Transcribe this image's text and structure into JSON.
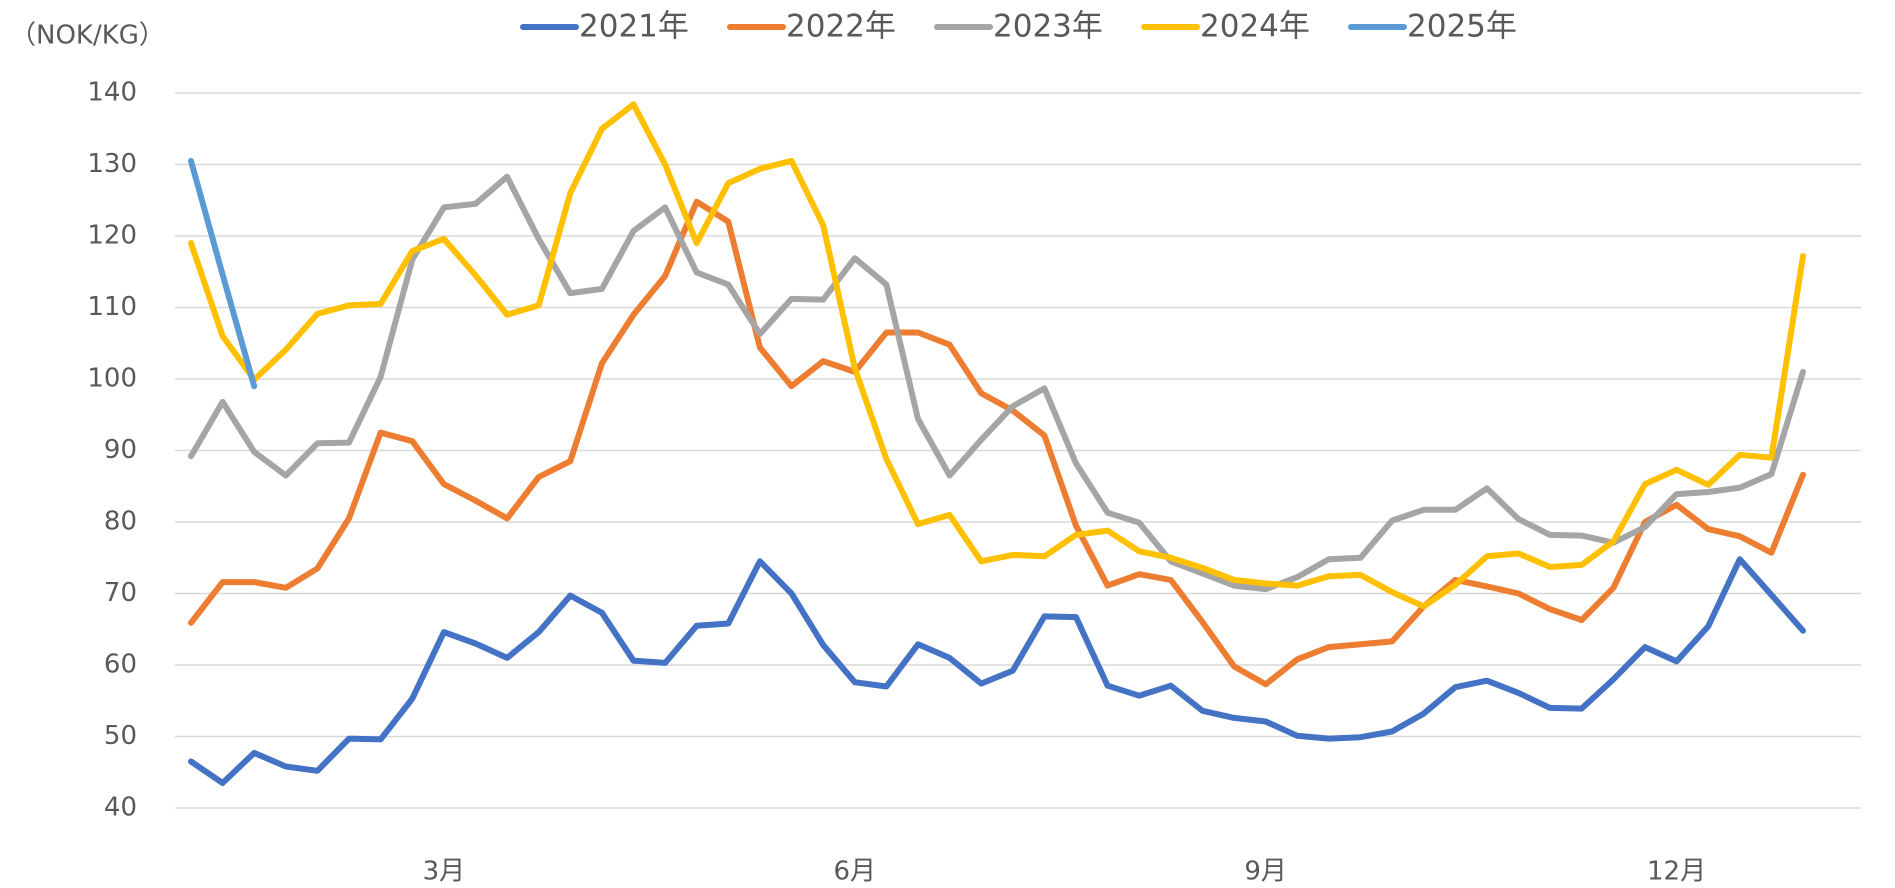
{
  "chart_data": {
    "type": "line",
    "y_label": "（NOK/KG）",
    "categories": [
      null,
      null,
      null,
      null,
      null,
      null,
      null,
      null,
      "3月",
      null,
      null,
      null,
      null,
      null,
      null,
      null,
      null,
      null,
      null,
      null,
      null,
      "6月",
      null,
      null,
      null,
      null,
      null,
      null,
      null,
      null,
      null,
      null,
      null,
      null,
      "9月",
      null,
      null,
      null,
      null,
      null,
      null,
      null,
      null,
      null,
      null,
      null,
      null,
      "12月",
      null,
      null,
      null,
      null
    ],
    "series": [
      {
        "name": "2021年",
        "color": "#4472c4",
        "values": [
          46.5,
          43.5,
          47.7,
          45.8,
          45.2,
          49.7,
          49.6,
          55.3,
          64.6,
          63,
          61,
          64.6,
          69.7,
          67.3,
          60.6,
          60.3,
          65.5,
          65.8,
          74.5,
          70,
          62.8,
          57.6,
          57,
          62.9,
          61,
          57.4,
          59.2,
          66.8,
          66.7,
          57.1,
          55.7,
          57.1,
          53.6,
          52.6,
          52.1,
          50.1,
          49.7,
          49.9,
          50.7,
          53.2,
          56.9,
          57.8,
          56.1,
          54,
          53.9,
          58,
          62.5,
          60.5,
          65.4,
          74.8,
          69.8,
          64.8
        ]
      },
      {
        "name": "2022年",
        "color": "#ed7d31",
        "values": [
          65.9,
          71.6,
          71.6,
          70.8,
          73.5,
          80.5,
          92.5,
          91.3,
          85.3,
          83,
          80.5,
          86.3,
          88.5,
          102.2,
          109,
          114.4,
          124.8,
          122,
          104.4,
          99,
          102.5,
          101,
          106.5,
          106.5,
          104.8,
          98,
          95.6,
          92.1,
          79.5,
          71.1,
          72.7,
          71.9,
          66,
          59.8,
          57.3,
          60.8,
          62.5,
          62.9,
          63.3,
          68.2,
          71.9,
          71,
          70,
          67.8,
          66.3,
          70.8,
          80,
          82.4,
          79,
          78,
          75.7,
          86.6
        ]
      },
      {
        "name": "2023年",
        "color": "#a5a5a5",
        "values": [
          89.2,
          96.8,
          89.8,
          86.5,
          91,
          91.1,
          100.3,
          116.7,
          124,
          124.5,
          128.3,
          119.6,
          112,
          112.6,
          120.7,
          124,
          114.9,
          113.2,
          106.3,
          111.2,
          111.1,
          116.9,
          113.2,
          94.4,
          86.5,
          91.5,
          96.2,
          98.7,
          88.2,
          81.3,
          79.9,
          74.5,
          72.8,
          71.1,
          70.6,
          72.3,
          74.8,
          75,
          80.2,
          81.7,
          81.7,
          84.7,
          80.4,
          78.2,
          78.1,
          77.1,
          79.3,
          83.9,
          84.2,
          84.8,
          86.7,
          101
        ]
      },
      {
        "name": "2024年",
        "color": "#ffc000",
        "values": [
          119,
          106,
          99.9,
          104.1,
          109.1,
          110.3,
          110.5,
          117.9,
          119.6,
          114.5,
          109,
          110.3,
          126,
          135,
          138.4,
          130,
          119,
          127.4,
          129.4,
          130.5,
          121.5,
          101.5,
          88.8,
          79.7,
          81,
          74.5,
          75.4,
          75.2,
          78.2,
          78.8,
          75.9,
          75,
          73.6,
          71.9,
          71.4,
          71.1,
          72.4,
          72.6,
          70.2,
          68.2,
          71.2,
          75.2,
          75.6,
          73.7,
          74,
          77.3,
          85.3,
          87.3,
          85.2,
          89.4,
          89,
          117.2
        ]
      },
      {
        "name": "2025年",
        "color": "#5b9bd5",
        "values": [
          130.5,
          114.6,
          99,
          null,
          null,
          null,
          null,
          null,
          null,
          null,
          null,
          null,
          null,
          null,
          null,
          null,
          null,
          null,
          null,
          null,
          null,
          null,
          null,
          null,
          null,
          null,
          null,
          null,
          null,
          null,
          null,
          null,
          null,
          null,
          null,
          null,
          null,
          null,
          null,
          null,
          null,
          null,
          null,
          null,
          null,
          null,
          null,
          null,
          null,
          null,
          null,
          null
        ]
      }
    ],
    "ylim": [
      40,
      140
    ],
    "yticks": [
      40,
      50,
      60,
      70,
      80,
      90,
      100,
      110,
      120,
      130,
      140
    ],
    "grid": true,
    "legend": "top"
  }
}
